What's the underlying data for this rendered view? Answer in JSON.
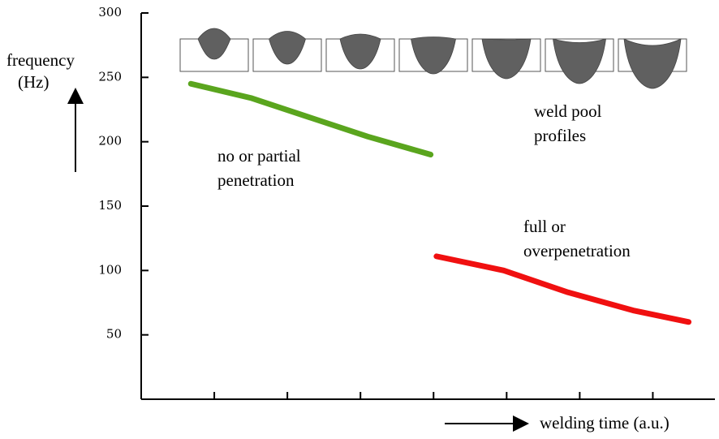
{
  "chart_data": {
    "type": "line",
    "y_label_lines": [
      "frequency",
      "(Hz)"
    ],
    "x_label": "welding time (a.u.)",
    "xlim": [
      0,
      7.85
    ],
    "xticks": [
      1,
      2,
      3,
      4,
      5,
      6,
      7
    ],
    "ylim": [
      0,
      300
    ],
    "yticks": [
      50,
      100,
      150,
      200,
      250,
      300
    ],
    "series": [
      {
        "color": "#5aa51e",
        "x": [
          0.68,
          1.5,
          2.3,
          3.1,
          3.96
        ],
        "values": [
          245,
          234,
          219,
          204,
          190
        ]
      },
      {
        "color": "#f01010",
        "x": [
          4.04,
          4.96,
          5.84,
          6.73,
          7.49
        ],
        "values": [
          111,
          100,
          83,
          69,
          60
        ]
      }
    ],
    "annotations": [
      {
        "lines": [
          "no or partial",
          "penetration"
        ]
      },
      {
        "lines": [
          "full  or",
          "overpenetration"
        ]
      },
      {
        "lines": [
          "weld pool",
          "profiles"
        ]
      }
    ]
  }
}
